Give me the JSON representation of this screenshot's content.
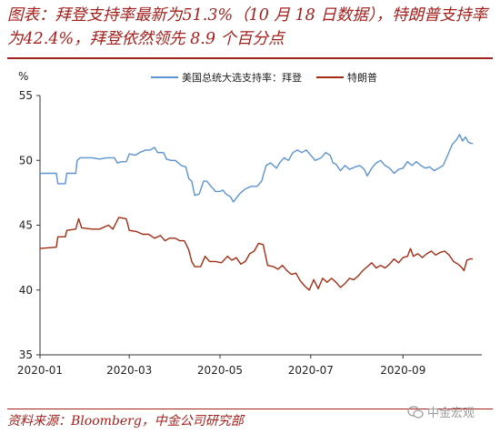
{
  "header": {
    "title": "图表：拜登支持率最新为51.3%（10 月 18 日数据），特朗普支持率为42.4%，拜登依然领先 8.9 个百分点"
  },
  "footer": {
    "source": "资料来源：Bloomberg，中金公司研究部",
    "watermark": "中金宏观"
  },
  "chart_data": {
    "type": "line",
    "ylabel": "%",
    "ylim": [
      35,
      55
    ],
    "yticks": [
      35,
      40,
      45,
      50,
      55
    ],
    "xlim": [
      "2020-01-01",
      "2020-10-24"
    ],
    "xticks": [
      "2020-01",
      "2020-03",
      "2020-05",
      "2020-07",
      "2020-09"
    ],
    "legend": "top-center",
    "grid": false,
    "series": [
      {
        "name": "美国总统大选支持率：拜登",
        "color": "#5b93d3",
        "points": [
          [
            "2020-01-01",
            49.0
          ],
          [
            "2020-01-12",
            49.0
          ],
          [
            "2020-01-13",
            48.2
          ],
          [
            "2020-01-18",
            48.2
          ],
          [
            "2020-01-19",
            49.0
          ],
          [
            "2020-01-25",
            49.0
          ],
          [
            "2020-01-26",
            50.0
          ],
          [
            "2020-01-28",
            50.2
          ],
          [
            "2020-02-05",
            50.2
          ],
          [
            "2020-02-10",
            50.1
          ],
          [
            "2020-02-15",
            50.2
          ],
          [
            "2020-02-20",
            50.2
          ],
          [
            "2020-02-22",
            49.8
          ],
          [
            "2020-02-25",
            49.9
          ],
          [
            "2020-02-28",
            49.9
          ],
          [
            "2020-03-01",
            50.5
          ],
          [
            "2020-03-05",
            50.4
          ],
          [
            "2020-03-08",
            50.6
          ],
          [
            "2020-03-12",
            50.8
          ],
          [
            "2020-03-15",
            50.8
          ],
          [
            "2020-03-18",
            51.0
          ],
          [
            "2020-03-20",
            50.6
          ],
          [
            "2020-03-24",
            50.6
          ],
          [
            "2020-03-26",
            50.1
          ],
          [
            "2020-03-29",
            50.0
          ],
          [
            "2020-04-01",
            50.0
          ],
          [
            "2020-04-05",
            49.6
          ],
          [
            "2020-04-08",
            49.5
          ],
          [
            "2020-04-10",
            48.6
          ],
          [
            "2020-04-12",
            48.4
          ],
          [
            "2020-04-14",
            47.3
          ],
          [
            "2020-04-17",
            47.4
          ],
          [
            "2020-04-20",
            48.4
          ],
          [
            "2020-04-22",
            48.4
          ],
          [
            "2020-04-25",
            48.0
          ],
          [
            "2020-04-28",
            47.6
          ],
          [
            "2020-05-01",
            47.6
          ],
          [
            "2020-05-03",
            47.7
          ],
          [
            "2020-05-05",
            47.4
          ],
          [
            "2020-05-08",
            47.2
          ],
          [
            "2020-05-10",
            46.8
          ],
          [
            "2020-05-14",
            47.4
          ],
          [
            "2020-05-18",
            47.8
          ],
          [
            "2020-05-22",
            48.0
          ],
          [
            "2020-05-26",
            48.0
          ],
          [
            "2020-05-29",
            48.4
          ],
          [
            "2020-06-01",
            49.6
          ],
          [
            "2020-06-04",
            49.8
          ],
          [
            "2020-06-08",
            49.4
          ],
          [
            "2020-06-10",
            49.8
          ],
          [
            "2020-06-13",
            50.2
          ],
          [
            "2020-06-16",
            50.0
          ],
          [
            "2020-06-19",
            50.6
          ],
          [
            "2020-06-22",
            50.8
          ],
          [
            "2020-06-25",
            50.6
          ],
          [
            "2020-06-28",
            50.8
          ],
          [
            "2020-07-01",
            50.4
          ],
          [
            "2020-07-04",
            50.0
          ],
          [
            "2020-07-08",
            50.2
          ],
          [
            "2020-07-11",
            50.6
          ],
          [
            "2020-07-14",
            50.4
          ],
          [
            "2020-07-16",
            49.8
          ],
          [
            "2020-07-18",
            49.7
          ],
          [
            "2020-07-21",
            49.2
          ],
          [
            "2020-07-24",
            49.6
          ],
          [
            "2020-07-27",
            49.3
          ],
          [
            "2020-07-31",
            49.5
          ],
          [
            "2020-08-03",
            49.6
          ],
          [
            "2020-08-06",
            49.3
          ],
          [
            "2020-08-08",
            48.8
          ],
          [
            "2020-08-11",
            49.4
          ],
          [
            "2020-08-14",
            49.8
          ],
          [
            "2020-08-17",
            50.0
          ],
          [
            "2020-08-20",
            49.6
          ],
          [
            "2020-08-23",
            49.4
          ],
          [
            "2020-08-26",
            49.0
          ],
          [
            "2020-08-29",
            49.3
          ],
          [
            "2020-09-01",
            49.4
          ],
          [
            "2020-09-04",
            49.9
          ],
          [
            "2020-09-07",
            49.6
          ],
          [
            "2020-09-10",
            49.9
          ],
          [
            "2020-09-13",
            49.6
          ],
          [
            "2020-09-16",
            49.4
          ],
          [
            "2020-09-19",
            49.5
          ],
          [
            "2020-09-22",
            49.2
          ],
          [
            "2020-09-25",
            49.4
          ],
          [
            "2020-09-28",
            49.6
          ],
          [
            "2020-10-01",
            50.4
          ],
          [
            "2020-10-04",
            51.2
          ],
          [
            "2020-10-07",
            51.6
          ],
          [
            "2020-10-09",
            52.0
          ],
          [
            "2020-10-11",
            51.5
          ],
          [
            "2020-10-13",
            51.8
          ],
          [
            "2020-10-15",
            51.4
          ],
          [
            "2020-10-17",
            51.3
          ],
          [
            "2020-10-18",
            51.3
          ]
        ]
      },
      {
        "name": "特朗普",
        "color": "#a32c14",
        "points": [
          [
            "2020-01-01",
            43.2
          ],
          [
            "2020-01-12",
            43.3
          ],
          [
            "2020-01-13",
            44.1
          ],
          [
            "2020-01-18",
            44.1
          ],
          [
            "2020-01-19",
            44.6
          ],
          [
            "2020-01-25",
            44.7
          ],
          [
            "2020-01-27",
            45.5
          ],
          [
            "2020-01-29",
            44.8
          ],
          [
            "2020-02-05",
            44.7
          ],
          [
            "2020-02-10",
            44.7
          ],
          [
            "2020-02-16",
            45.0
          ],
          [
            "2020-02-19",
            44.7
          ],
          [
            "2020-02-23",
            45.6
          ],
          [
            "2020-02-28",
            45.5
          ],
          [
            "2020-03-01",
            44.6
          ],
          [
            "2020-03-06",
            44.5
          ],
          [
            "2020-03-10",
            44.3
          ],
          [
            "2020-03-14",
            44.3
          ],
          [
            "2020-03-18",
            44.0
          ],
          [
            "2020-03-22",
            44.2
          ],
          [
            "2020-03-25",
            43.8
          ],
          [
            "2020-03-28",
            44.0
          ],
          [
            "2020-04-01",
            44.0
          ],
          [
            "2020-04-04",
            43.8
          ],
          [
            "2020-04-07",
            43.8
          ],
          [
            "2020-04-10",
            43.1
          ],
          [
            "2020-04-12",
            42.2
          ],
          [
            "2020-04-14",
            41.8
          ],
          [
            "2020-04-18",
            41.8
          ],
          [
            "2020-04-21",
            42.6
          ],
          [
            "2020-04-24",
            42.2
          ],
          [
            "2020-04-28",
            42.2
          ],
          [
            "2020-05-02",
            42.1
          ],
          [
            "2020-05-06",
            42.6
          ],
          [
            "2020-05-09",
            42.3
          ],
          [
            "2020-05-12",
            42.5
          ],
          [
            "2020-05-15",
            42.0
          ],
          [
            "2020-05-18",
            42.2
          ],
          [
            "2020-05-21",
            42.8
          ],
          [
            "2020-05-24",
            43.0
          ],
          [
            "2020-05-27",
            43.6
          ],
          [
            "2020-05-30",
            43.5
          ],
          [
            "2020-06-02",
            41.9
          ],
          [
            "2020-06-06",
            41.8
          ],
          [
            "2020-06-09",
            41.6
          ],
          [
            "2020-06-12",
            41.9
          ],
          [
            "2020-06-15",
            41.5
          ],
          [
            "2020-06-18",
            41.2
          ],
          [
            "2020-06-21",
            41.3
          ],
          [
            "2020-06-24",
            40.7
          ],
          [
            "2020-06-27",
            40.3
          ],
          [
            "2020-06-30",
            40.0
          ],
          [
            "2020-07-03",
            40.8
          ],
          [
            "2020-07-06",
            40.1
          ],
          [
            "2020-07-09",
            40.9
          ],
          [
            "2020-07-12",
            40.6
          ],
          [
            "2020-07-15",
            40.9
          ],
          [
            "2020-07-18",
            40.6
          ],
          [
            "2020-07-21",
            40.2
          ],
          [
            "2020-07-24",
            40.5
          ],
          [
            "2020-07-27",
            40.9
          ],
          [
            "2020-07-30",
            40.8
          ],
          [
            "2020-08-02",
            41.1
          ],
          [
            "2020-08-05",
            41.5
          ],
          [
            "2020-08-08",
            41.8
          ],
          [
            "2020-08-11",
            42.1
          ],
          [
            "2020-08-14",
            41.7
          ],
          [
            "2020-08-17",
            41.9
          ],
          [
            "2020-08-20",
            41.7
          ],
          [
            "2020-08-23",
            42.0
          ],
          [
            "2020-08-26",
            42.4
          ],
          [
            "2020-08-29",
            42.1
          ],
          [
            "2020-09-01",
            42.5
          ],
          [
            "2020-09-04",
            42.6
          ],
          [
            "2020-09-06",
            43.2
          ],
          [
            "2020-09-08",
            42.6
          ],
          [
            "2020-09-11",
            42.8
          ],
          [
            "2020-09-14",
            42.5
          ],
          [
            "2020-09-17",
            42.8
          ],
          [
            "2020-09-20",
            43.0
          ],
          [
            "2020-09-23",
            42.7
          ],
          [
            "2020-09-26",
            42.9
          ],
          [
            "2020-09-29",
            43.0
          ],
          [
            "2020-10-02",
            42.7
          ],
          [
            "2020-10-05",
            42.2
          ],
          [
            "2020-10-08",
            42.0
          ],
          [
            "2020-10-10",
            41.8
          ],
          [
            "2020-10-12",
            41.5
          ],
          [
            "2020-10-14",
            42.3
          ],
          [
            "2020-10-16",
            42.4
          ],
          [
            "2020-10-18",
            42.4
          ]
        ]
      }
    ]
  }
}
